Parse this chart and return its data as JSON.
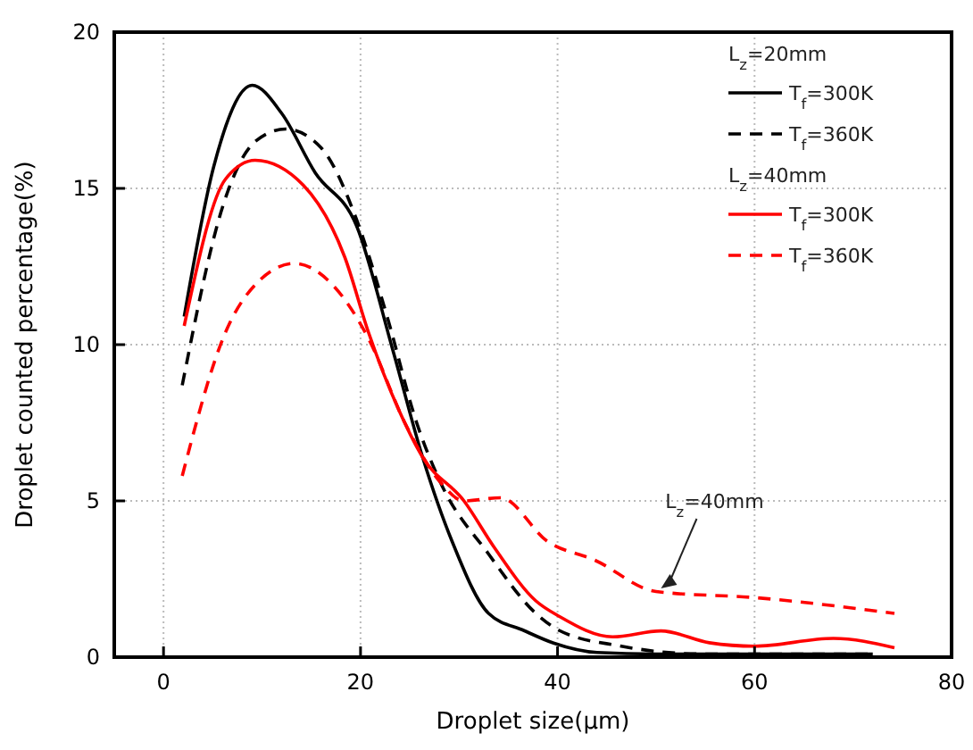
{
  "chart_data": {
    "type": "line",
    "xlabel": "Droplet size(μm)",
    "ylabel": "Droplet counted percentage(%)",
    "xlim": [
      -5,
      80
    ],
    "ylim": [
      0,
      20
    ],
    "xticks": [
      0,
      20,
      40,
      60,
      80
    ],
    "yticks": [
      0,
      5,
      10,
      15,
      20
    ],
    "grid": true,
    "legend": "top right",
    "marker": "none",
    "annotations": [
      "L$_{z}$=20mm",
      "L$_{z}$=40mm",
      {
        "text": "L$_{z}$=40mm",
        "x": 50.5,
        "y": 2.2
      }
    ],
    "series": [
      {
        "name": "T$_{f}$=300K",
        "color": "#000000",
        "line_style": "solid",
        "x": [
          2.1,
          5.1,
          9,
          12,
          15.4,
          19.6,
          23.3,
          26.3,
          29.3,
          33,
          36.6,
          39.6,
          44,
          50,
          60,
          72
        ],
        "values": [
          10.9,
          15.7,
          18.3,
          17.4,
          15.5,
          13.8,
          9.8,
          6.4,
          3.7,
          1.4,
          0.85,
          0.45,
          0.15,
          0.1,
          0.1,
          0.1
        ]
      },
      {
        "name": "T$_{f}$=360K",
        "color": "#000000",
        "line_style": "dashed",
        "x": [
          1.9,
          6.3,
          9.3,
          12.4,
          16,
          19.6,
          22.7,
          25.7,
          28.1,
          33,
          37.8,
          40.2,
          46.3,
          55,
          72
        ],
        "values": [
          8.7,
          14.7,
          16.5,
          16.9,
          16.3,
          14,
          10.9,
          7.5,
          5.6,
          3.3,
          1.4,
          0.85,
          0.36,
          0.1,
          0.1
        ]
      },
      {
        "name": "T$_{f}$=300K",
        "color": "#ff0000",
        "line_style": "solid",
        "x": [
          2.1,
          6.3,
          9.3,
          14.2,
          18.4,
          20.8,
          23.9,
          26.3,
          30.5,
          33.6,
          37.8,
          40.2,
          45.6,
          50.5,
          55.4,
          60,
          68,
          74.2
        ],
        "values": [
          10.6,
          15.3,
          15.9,
          15.1,
          12.8,
          10.4,
          7.9,
          6.4,
          5,
          3.5,
          1.8,
          1.3,
          0.65,
          0.84,
          0.46,
          0.35,
          0.6,
          0.3
        ]
      },
      {
        "name": "T$_{f}$=360K",
        "color": "#ff0000",
        "line_style": "dashed",
        "x": [
          1.9,
          6.3,
          9.9,
          13.3,
          17.2,
          20.8,
          24.5,
          28.1,
          30.5,
          34.2,
          39,
          43.8,
          50,
          60.2,
          74.2
        ],
        "values": [
          5.8,
          10.4,
          12.1,
          12.6,
          11.9,
          10.2,
          7.5,
          5.6,
          5,
          5.1,
          3.7,
          3.1,
          2.1,
          1.9,
          1.4
        ]
      }
    ]
  }
}
